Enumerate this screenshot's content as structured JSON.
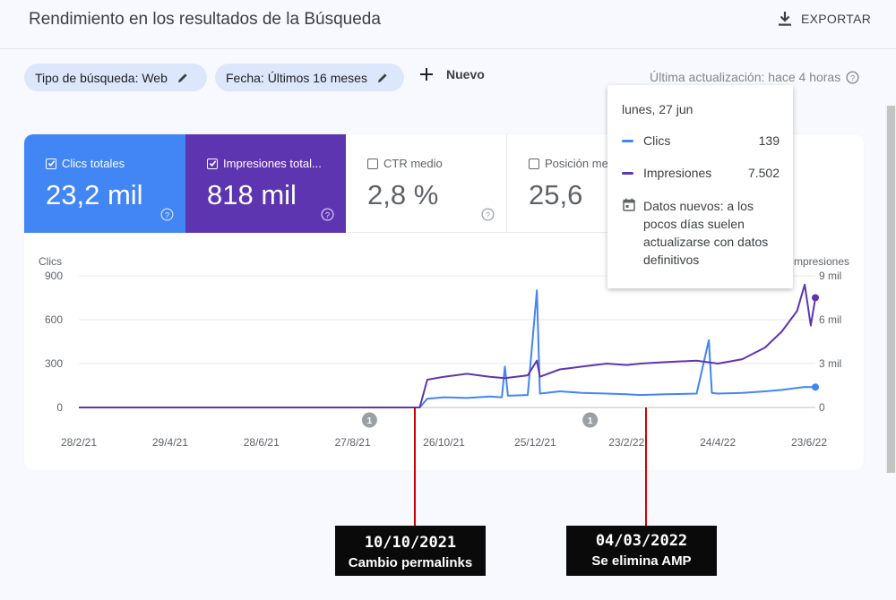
{
  "header": {
    "title": "Rendimiento en los resultados de la Búsqueda",
    "export_label": "EXPORTAR"
  },
  "filters": {
    "search_type": "Tipo de búsqueda: Web",
    "date": "Fecha: Últimos 16 meses",
    "new_label": "Nuevo",
    "last_update": "Última actualización: hace 4 horas"
  },
  "metrics": [
    {
      "label": "Clics totales",
      "value": "23,2 mil",
      "checked": true,
      "color": "#4285f4"
    },
    {
      "label": "Impresiones total...",
      "value": "818 mil",
      "checked": true,
      "color": "#5e35b1"
    },
    {
      "label": "CTR medio",
      "value": "2,8 %",
      "checked": false
    },
    {
      "label": "Posición me",
      "value": "25,6",
      "checked": false
    }
  ],
  "tooltip": {
    "date": "lunes, 27 jun",
    "rows": [
      {
        "name": "Clics",
        "value": "139",
        "color": "#4285f4"
      },
      {
        "name": "Impresiones",
        "value": "7.502",
        "color": "#5e35b1"
      }
    ],
    "note": "Datos nuevos: a los pocos días suelen actualizarse con datos definitivos"
  },
  "chart_data": {
    "type": "line",
    "left_axis": {
      "label": "Clics",
      "ticks": [
        "900",
        "600",
        "300",
        "0"
      ],
      "range": [
        0,
        900
      ]
    },
    "right_axis": {
      "label": "Impresiones",
      "ticks": [
        "9 mil",
        "6 mil",
        "3 mil",
        "0"
      ],
      "range": [
        0,
        9000
      ]
    },
    "x_ticks": [
      "28/2/21",
      "29/4/21",
      "28/6/21",
      "27/8/21",
      "26/10/21",
      "25/12/21",
      "23/2/22",
      "24/4/22",
      "23/6/22"
    ],
    "markers": [
      {
        "label": "1",
        "date": "2021-09-07"
      },
      {
        "label": "1",
        "date": "2022-01-30"
      }
    ],
    "series": [
      {
        "name": "Clics",
        "color": "#4285f4",
        "axis": "left",
        "points": [
          [
            "2021-02-28",
            0
          ],
          [
            "2021-04-29",
            0
          ],
          [
            "2021-06-28",
            0
          ],
          [
            "2021-08-27",
            0
          ],
          [
            "2021-10-10",
            0
          ],
          [
            "2021-10-15",
            60
          ],
          [
            "2021-10-26",
            70
          ],
          [
            "2021-11-10",
            65
          ],
          [
            "2021-11-25",
            75
          ],
          [
            "2021-12-03",
            70
          ],
          [
            "2021-12-05",
            280
          ],
          [
            "2021-12-07",
            80
          ],
          [
            "2021-12-20",
            85
          ],
          [
            "2021-12-26",
            800
          ],
          [
            "2021-12-28",
            95
          ],
          [
            "2022-01-10",
            110
          ],
          [
            "2022-01-25",
            100
          ],
          [
            "2022-02-10",
            95
          ],
          [
            "2022-02-23",
            90
          ],
          [
            "2022-03-04",
            85
          ],
          [
            "2022-03-20",
            90
          ],
          [
            "2022-04-10",
            95
          ],
          [
            "2022-04-18",
            460
          ],
          [
            "2022-04-20",
            100
          ],
          [
            "2022-04-24",
            95
          ],
          [
            "2022-05-10",
            100
          ],
          [
            "2022-05-25",
            110
          ],
          [
            "2022-06-05",
            120
          ],
          [
            "2022-06-20",
            140
          ],
          [
            "2022-06-27",
            139
          ]
        ]
      },
      {
        "name": "Impresiones",
        "color": "#5e35b1",
        "axis": "right",
        "points": [
          [
            "2021-02-28",
            0
          ],
          [
            "2021-04-29",
            0
          ],
          [
            "2021-06-28",
            0
          ],
          [
            "2021-08-27",
            0
          ],
          [
            "2021-10-10",
            0
          ],
          [
            "2021-10-15",
            1900
          ],
          [
            "2021-10-26",
            2100
          ],
          [
            "2021-11-10",
            2300
          ],
          [
            "2021-11-25",
            2100
          ],
          [
            "2021-12-05",
            2000
          ],
          [
            "2021-12-20",
            2200
          ],
          [
            "2021-12-26",
            3200
          ],
          [
            "2021-12-28",
            2100
          ],
          [
            "2022-01-10",
            2600
          ],
          [
            "2022-01-25",
            2800
          ],
          [
            "2022-02-10",
            3000
          ],
          [
            "2022-02-23",
            2900
          ],
          [
            "2022-03-04",
            3000
          ],
          [
            "2022-03-20",
            3100
          ],
          [
            "2022-04-10",
            3200
          ],
          [
            "2022-04-24",
            3000
          ],
          [
            "2022-05-10",
            3300
          ],
          [
            "2022-05-25",
            4100
          ],
          [
            "2022-06-05",
            5200
          ],
          [
            "2022-06-15",
            6600
          ],
          [
            "2022-06-20",
            8400
          ],
          [
            "2022-06-24",
            5600
          ],
          [
            "2022-06-27",
            7502
          ]
        ]
      }
    ]
  },
  "annotations": [
    {
      "date_label": "10/10/2021",
      "text": "Cambio permalinks"
    },
    {
      "date_label": "04/03/2022",
      "text": "Se elimina AMP"
    }
  ]
}
